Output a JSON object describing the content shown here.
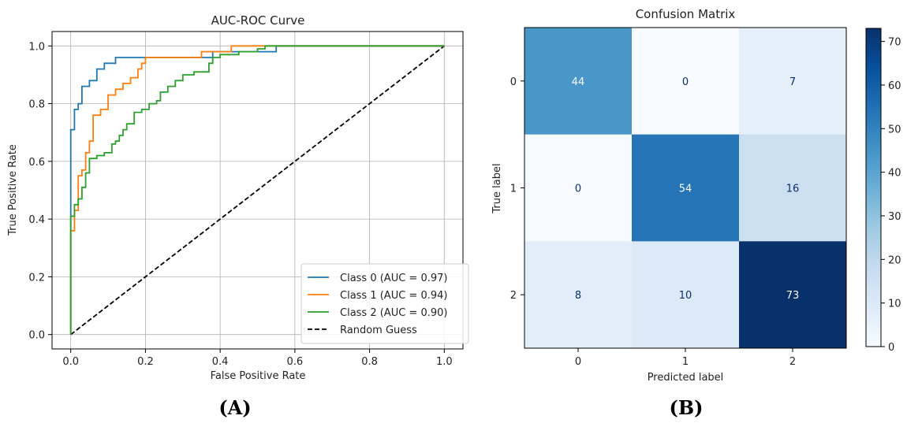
{
  "chart_data": [
    {
      "type": "line",
      "panel_label": "(A)",
      "title": "AUC-ROC Curve",
      "xlabel": "False Positive Rate",
      "ylabel": "True Positive Rate",
      "xlim": [
        -0.05,
        1.05
      ],
      "ylim": [
        -0.05,
        1.05
      ],
      "xticks": [
        "0.0",
        "0.2",
        "0.4",
        "0.6",
        "0.8",
        "1.0"
      ],
      "yticks": [
        "0.0",
        "0.2",
        "0.4",
        "0.6",
        "0.8",
        "1.0"
      ],
      "grid": true,
      "legend_position": "lower-right",
      "series": [
        {
          "name": "Class 0 (AUC = 0.97)",
          "color": "#1f77b4",
          "dash": false,
          "x": [
            0,
            0,
            0.01,
            0.01,
            0.02,
            0.02,
            0.03,
            0.03,
            0.05,
            0.05,
            0.07,
            0.07,
            0.09,
            0.09,
            0.12,
            0.12,
            0.17,
            0.17,
            0.19,
            0.19,
            0.21,
            0.21,
            0.26,
            0.26,
            0.38,
            0.38,
            0.55,
            0.55,
            1.0
          ],
          "y": [
            0,
            0.71,
            0.71,
            0.78,
            0.78,
            0.8,
            0.8,
            0.86,
            0.86,
            0.88,
            0.88,
            0.92,
            0.92,
            0.94,
            0.94,
            0.96,
            0.96,
            0.96,
            0.96,
            0.96,
            0.96,
            0.96,
            0.96,
            0.96,
            0.96,
            0.98,
            0.98,
            1.0,
            1.0
          ]
        },
        {
          "name": "Class 1 (AUC = 0.94)",
          "color": "#ff7f0e",
          "dash": false,
          "x": [
            0,
            0,
            0.01,
            0.01,
            0.02,
            0.02,
            0.03,
            0.03,
            0.04,
            0.04,
            0.05,
            0.05,
            0.06,
            0.06,
            0.08,
            0.08,
            0.1,
            0.1,
            0.12,
            0.12,
            0.14,
            0.14,
            0.16,
            0.16,
            0.18,
            0.18,
            0.19,
            0.19,
            0.2,
            0.2,
            0.25,
            0.25,
            0.33,
            0.33,
            0.35,
            0.35,
            0.38,
            0.38,
            0.43,
            0.43,
            0.5,
            0.5,
            1.0
          ],
          "y": [
            0,
            0.36,
            0.36,
            0.43,
            0.43,
            0.55,
            0.55,
            0.57,
            0.57,
            0.63,
            0.63,
            0.67,
            0.67,
            0.76,
            0.76,
            0.78,
            0.78,
            0.83,
            0.83,
            0.85,
            0.85,
            0.87,
            0.87,
            0.89,
            0.89,
            0.92,
            0.92,
            0.94,
            0.94,
            0.96,
            0.96,
            0.96,
            0.96,
            0.96,
            0.96,
            0.98,
            0.98,
            0.98,
            0.98,
            1.0,
            1.0,
            1.0,
            1.0
          ]
        },
        {
          "name": "Class 2 (AUC = 0.90)",
          "color": "#2ca02c",
          "dash": false,
          "x": [
            0,
            0,
            0.01,
            0.01,
            0.02,
            0.02,
            0.03,
            0.03,
            0.04,
            0.04,
            0.05,
            0.05,
            0.07,
            0.07,
            0.09,
            0.09,
            0.11,
            0.11,
            0.12,
            0.12,
            0.13,
            0.13,
            0.14,
            0.14,
            0.15,
            0.15,
            0.17,
            0.17,
            0.19,
            0.19,
            0.21,
            0.21,
            0.23,
            0.23,
            0.24,
            0.24,
            0.26,
            0.26,
            0.28,
            0.28,
            0.3,
            0.3,
            0.33,
            0.33,
            0.37,
            0.37,
            0.38,
            0.38,
            0.4,
            0.4,
            0.45,
            0.45,
            0.5,
            0.5,
            0.52,
            0.52,
            1.0
          ],
          "y": [
            0,
            0.41,
            0.41,
            0.45,
            0.45,
            0.47,
            0.47,
            0.51,
            0.51,
            0.56,
            0.56,
            0.61,
            0.61,
            0.62,
            0.62,
            0.63,
            0.63,
            0.66,
            0.66,
            0.67,
            0.67,
            0.69,
            0.69,
            0.71,
            0.71,
            0.73,
            0.73,
            0.77,
            0.77,
            0.78,
            0.78,
            0.8,
            0.8,
            0.81,
            0.81,
            0.84,
            0.84,
            0.86,
            0.86,
            0.88,
            0.88,
            0.9,
            0.9,
            0.91,
            0.91,
            0.94,
            0.94,
            0.96,
            0.96,
            0.97,
            0.97,
            0.98,
            0.98,
            0.99,
            0.99,
            1.0,
            1.0
          ]
        },
        {
          "name": "Random Guess",
          "color": "#000000",
          "dash": true,
          "x": [
            0,
            1
          ],
          "y": [
            0,
            1
          ]
        }
      ]
    },
    {
      "type": "heatmap",
      "panel_label": "(B)",
      "title": "Confusion Matrix",
      "xlabel": "Predicted label",
      "ylabel": "True label",
      "x_categories": [
        "0",
        "1",
        "2"
      ],
      "y_categories": [
        "0",
        "1",
        "2"
      ],
      "values": [
        [
          44,
          0,
          7
        ],
        [
          0,
          54,
          16
        ],
        [
          8,
          10,
          73
        ]
      ],
      "colormap": "Blues",
      "colorbar_range": [
        0,
        73
      ],
      "colorbar_ticks": [
        "0",
        "10",
        "20",
        "30",
        "40",
        "50",
        "60",
        "70"
      ]
    }
  ]
}
